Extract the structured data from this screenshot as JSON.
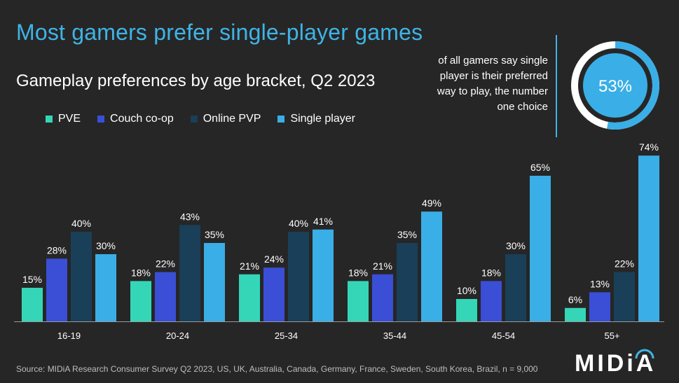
{
  "title": "Most gamers prefer single-player games",
  "subtitle": "Gameplay preferences by age bracket, Q2 2023",
  "callout": {
    "text": "of all gamers say single player is their preferred way to play, the number one choice",
    "value": "53%",
    "fraction": 0.53
  },
  "source": "Source: MIDiA Research Consumer Survey Q2 2023, US, UK, Australia, Canada, Germany, France, Sweden, South Korea, Brazil, n = 9,000",
  "brand": "MIDiA",
  "colors": {
    "background": "#262626",
    "title": "#3fb4e6",
    "pve": "#35d6b8",
    "couch_coop": "#3a4fd6",
    "online_pvp": "#1a3f58",
    "single_player": "#3aaee6"
  },
  "chart_data": {
    "type": "bar",
    "categories": [
      "16-19",
      "20-24",
      "25-34",
      "35-44",
      "45-54",
      "55+"
    ],
    "series": [
      {
        "name": "PVE",
        "values": [
          15,
          18,
          21,
          18,
          10,
          6
        ],
        "labels": [
          "15%",
          "18%",
          "21%",
          "18%",
          "10%",
          "6%"
        ]
      },
      {
        "name": "Couch co-op",
        "values": [
          28,
          22,
          24,
          21,
          18,
          13
        ],
        "labels": [
          "28%",
          "22%",
          "24%",
          "21%",
          "18%",
          "13%"
        ]
      },
      {
        "name": "Online PVP",
        "values": [
          40,
          43,
          40,
          35,
          30,
          22
        ],
        "labels": [
          "40%",
          "43%",
          "40%",
          "35%",
          "30%",
          "22%"
        ]
      },
      {
        "name": "Single player",
        "values": [
          30,
          35,
          41,
          49,
          65,
          74
        ],
        "labels": [
          "30%",
          "35%",
          "41%",
          "49%",
          "65%",
          "74%"
        ]
      }
    ],
    "ylim": [
      0,
      74
    ],
    "legend": "top-left",
    "grid": false
  }
}
